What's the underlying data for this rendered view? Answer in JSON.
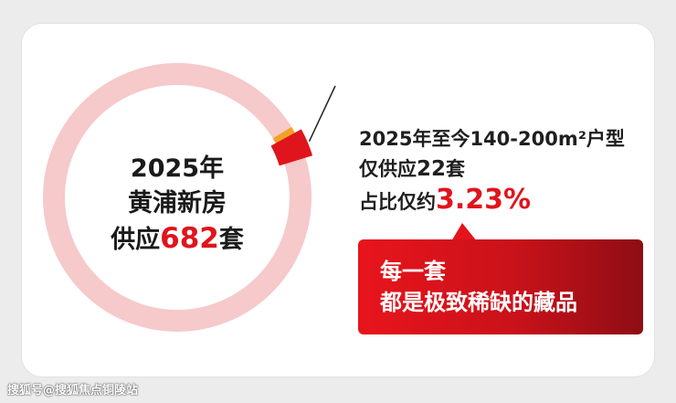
{
  "chart_data": {
    "type": "pie",
    "total": 682,
    "slices": [
      {
        "value": 660,
        "color": "#f6c9ca"
      },
      {
        "value": 22,
        "color": "#e0141c"
      }
    ],
    "accent_color": "#f2a228",
    "center": {
      "line1": "2025年",
      "line2": "黄浦新房",
      "line3_prefix": "供应",
      "line3_value": "682",
      "line3_suffix": "套"
    },
    "annotation": {
      "line1": "2025年至今140-200m²户型",
      "line2_prefix": "仅供应",
      "line2_value": "22",
      "line2_suffix": "套",
      "line3_prefix": "占比仅约",
      "line3_value": "3.23%"
    },
    "callout": {
      "line1": "每一套",
      "line2": "都是极致稀缺的藏品"
    }
  },
  "watermark": "搜狐号@搜狐焦点铜陵站"
}
